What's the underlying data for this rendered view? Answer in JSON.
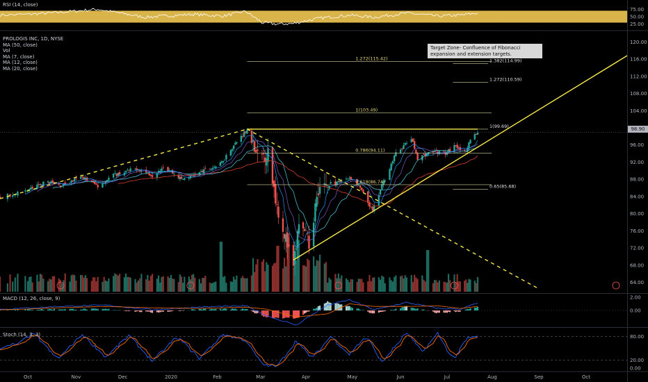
{
  "header": {
    "rsi_label": "RSI (14, close)",
    "main_labels": [
      "PROLOGIS INC, 1D, NYSE",
      "MA (50, close)",
      "Vol",
      "MA (7, close)",
      "MA (12, close)",
      "MA (20, close)"
    ],
    "macd_label": "MACD (12, 26, close, 9)",
    "stoch_label": "Stoch (14, 3, 3)"
  },
  "annotation": "Target Zone- Confluence of Fibonacci expansion and extension targets.",
  "last_price": "98.90",
  "colors": {
    "background": "#000000",
    "bull": "#26a69a",
    "bear": "#ef5350",
    "trendline": "#f7e94a",
    "rsi_band": "#d9b44a",
    "ma50": "#c0392b",
    "ma7": "#2196f3",
    "ma12": "#7e57c2",
    "ma20": "#4dd0e1",
    "macd_line": "#2962ff",
    "signal_line": "#ff6d00",
    "stoch_k": "#2962ff",
    "stoch_d": "#ff6d00"
  },
  "chart_data": [
    {
      "type": "line",
      "title": "RSI (14, close)",
      "y_ticks": [
        "75.00",
        "50.00",
        "25.00"
      ],
      "ylim": [
        15,
        85
      ],
      "band": [
        30,
        70
      ],
      "series": [
        {
          "x": [
            "2019-09-20",
            "2019-10-15",
            "2019-11-15",
            "2019-12-15",
            "2020-01-15",
            "2020-02-05",
            "2020-02-20",
            "2020-03-02",
            "2020-03-12",
            "2020-03-23",
            "2020-04-10",
            "2020-04-29",
            "2020-05-15",
            "2020-06-05",
            "2020-06-25",
            "2020-07-10",
            "2020-07-22"
          ],
          "values": [
            55,
            62,
            75,
            48,
            58,
            52,
            68,
            30,
            25,
            27,
            45,
            55,
            48,
            62,
            52,
            55,
            62
          ]
        }
      ]
    },
    {
      "type": "candlestick",
      "title": "PROLOGIS INC, 1D, NYSE",
      "y_ticks": [
        "120.00",
        "116.00",
        "112.00",
        "108.00",
        "104.00",
        "100.00",
        "96.00",
        "92.00",
        "88.00",
        "84.00",
        "80.00",
        "76.00",
        "72.00",
        "68.00",
        "64.00"
      ],
      "ylim": [
        61.5,
        122
      ],
      "x_ticks": [
        "Oct",
        "Nov",
        "Dec",
        "2020",
        "Feb",
        "Mar",
        "Apr",
        "May",
        "Jun",
        "Jul",
        "Aug",
        "Sep",
        "Oct"
      ],
      "x_range": [
        "2019-09-20",
        "2020-10-20"
      ],
      "close_path": [
        [
          "2019-09-20",
          83.8
        ],
        [
          "2019-10-01",
          85.5
        ],
        [
          "2019-10-14",
          87.5
        ],
        [
          "2019-10-22",
          86.5
        ],
        [
          "2019-11-05",
          88.5
        ],
        [
          "2019-11-15",
          86.5
        ],
        [
          "2019-11-25",
          89
        ],
        [
          "2019-12-10",
          90.5
        ],
        [
          "2019-12-20",
          89
        ],
        [
          "2019-12-27",
          91
        ],
        [
          "2020-01-08",
          88
        ],
        [
          "2020-01-20",
          89.5
        ],
        [
          "2020-02-03",
          91.5
        ],
        [
          "2020-02-10",
          95
        ],
        [
          "2020-02-21",
          99.69
        ],
        [
          "2020-02-28",
          93
        ],
        [
          "2020-03-06",
          94
        ],
        [
          "2020-03-12",
          82
        ],
        [
          "2020-03-18",
          74
        ],
        [
          "2020-03-23",
          67
        ],
        [
          "2020-03-27",
          78
        ],
        [
          "2020-04-03",
          73
        ],
        [
          "2020-04-09",
          86
        ],
        [
          "2020-04-21",
          87
        ],
        [
          "2020-04-29",
          88.5
        ],
        [
          "2020-05-06",
          86
        ],
        [
          "2020-05-14",
          80.5
        ],
        [
          "2020-05-20",
          86.5
        ],
        [
          "2020-05-29",
          94
        ],
        [
          "2020-06-08",
          97.5
        ],
        [
          "2020-06-12",
          93
        ],
        [
          "2020-06-22",
          94.5
        ],
        [
          "2020-06-30",
          94
        ],
        [
          "2020-07-07",
          96
        ],
        [
          "2020-07-14",
          94
        ],
        [
          "2020-07-17",
          97.5
        ],
        [
          "2020-07-22",
          98.9
        ]
      ],
      "volume_spikes": [
        [
          "2020-02-03",
          0.6
        ],
        [
          "2020-03-13",
          0.55
        ],
        [
          "2020-03-20",
          0.7
        ],
        [
          "2020-03-27",
          0.62
        ],
        [
          "2020-06-19",
          0.5
        ]
      ],
      "moving_averages": [
        "MA (50, close)",
        "MA (7, close)",
        "MA (12, close)",
        "MA (20, close)"
      ],
      "trendlines": [
        {
          "style": "dashed",
          "from": [
            "2019-09-20",
            83.5
          ],
          "to": [
            "2020-02-21",
            99.69
          ]
        },
        {
          "style": "dashed",
          "from": [
            "2020-02-21",
            99.69
          ],
          "to": [
            "2020-09-01",
            62.5
          ]
        },
        {
          "style": "solid",
          "from": [
            "2020-02-21",
            99.69
          ],
          "to": [
            "2020-07-22",
            99.69
          ]
        },
        {
          "style": "solid",
          "from": [
            "2020-03-23",
            69.2
          ],
          "to": [
            "2020-10-20",
            116.8
          ]
        }
      ],
      "fib_levels": [
        {
          "label": "1.272(115.42)",
          "value": 115.42,
          "from": "2020-02-21",
          "to": "2020-07-22"
        },
        {
          "label": "1(103.49)",
          "value": 103.49,
          "from": "2020-02-21",
          "to": "2020-07-22"
        },
        {
          "label": "0.786(94.11)",
          "value": 94.11,
          "from": "2020-02-21",
          "to": "2020-07-22"
        },
        {
          "label": "0.618(86.74)",
          "value": 86.74,
          "from": "2020-02-21",
          "to": "2020-07-22"
        },
        {
          "label": "1.414(116.28)",
          "value": 116.28,
          "from": "2020-07-05",
          "to": "2020-07-22"
        },
        {
          "label": "1.382(114.99)",
          "value": 114.99,
          "from": "2020-07-05",
          "to": "2020-07-22"
        },
        {
          "label": "1.272(110.59)",
          "value": 110.59,
          "from": "2020-07-05",
          "to": "2020-07-22"
        },
        {
          "label": "1(99.69)",
          "value": 99.69,
          "from": "2020-07-05",
          "to": "2020-07-22"
        },
        {
          "label": "0.65(85.68)",
          "value": 85.68,
          "from": "2020-07-05",
          "to": "2020-07-22"
        }
      ],
      "last_price": 98.9
    },
    {
      "type": "bar",
      "title": "MACD (12, 26, close, 9)",
      "y_ticks": [
        "2.00",
        "0.00"
      ],
      "ylim": [
        -2.5,
        2.5
      ],
      "macd_path": [
        [
          "2019-09-20",
          0.2
        ],
        [
          "2019-10-20",
          0.6
        ],
        [
          "2019-11-20",
          0.8
        ],
        [
          "2019-12-20",
          0.1
        ],
        [
          "2020-01-20",
          0.5
        ],
        [
          "2020-02-20",
          0.7
        ],
        [
          "2020-03-05",
          -0.8
        ],
        [
          "2020-03-25",
          -2.2
        ],
        [
          "2020-04-15",
          0.8
        ],
        [
          "2020-04-29",
          1.6
        ],
        [
          "2020-05-15",
          0.1
        ],
        [
          "2020-06-05",
          1.2
        ],
        [
          "2020-06-25",
          0.3
        ],
        [
          "2020-07-10",
          0.2
        ],
        [
          "2020-07-22",
          1.1
        ]
      ],
      "signal_path": [
        [
          "2019-09-20",
          0.1
        ],
        [
          "2019-10-20",
          0.4
        ],
        [
          "2019-11-20",
          0.6
        ],
        [
          "2019-12-20",
          0.4
        ],
        [
          "2020-01-20",
          0.3
        ],
        [
          "2020-02-20",
          0.5
        ],
        [
          "2020-03-05",
          0.2
        ],
        [
          "2020-03-25",
          -1.0
        ],
        [
          "2020-04-15",
          -0.5
        ],
        [
          "2020-04-29",
          1.0
        ],
        [
          "2020-05-15",
          0.6
        ],
        [
          "2020-06-05",
          0.6
        ],
        [
          "2020-06-25",
          0.7
        ],
        [
          "2020-07-10",
          0.3
        ],
        [
          "2020-07-22",
          0.6
        ]
      ]
    },
    {
      "type": "line",
      "title": "Stoch (14, 3, 3)",
      "y_ticks": [
        "80.00",
        "20.00",
        "0.00"
      ],
      "ylim": [
        -5,
        100
      ],
      "guide_levels": [
        80,
        20
      ],
      "k_path": [
        [
          "2019-09-20",
          45
        ],
        [
          "2019-10-05",
          88
        ],
        [
          "2019-10-20",
          22
        ],
        [
          "2019-11-05",
          85
        ],
        [
          "2019-11-20",
          28
        ],
        [
          "2019-12-05",
          82
        ],
        [
          "2019-12-20",
          18
        ],
        [
          "2020-01-05",
          80
        ],
        [
          "2020-01-20",
          25
        ],
        [
          "2020-02-05",
          85
        ],
        [
          "2020-02-20",
          70
        ],
        [
          "2020-03-02",
          10
        ],
        [
          "2020-03-12",
          4
        ],
        [
          "2020-03-25",
          70
        ],
        [
          "2020-04-05",
          25
        ],
        [
          "2020-04-17",
          80
        ],
        [
          "2020-04-29",
          35
        ],
        [
          "2020-05-10",
          82
        ],
        [
          "2020-05-20",
          15
        ],
        [
          "2020-06-05",
          90
        ],
        [
          "2020-06-15",
          40
        ],
        [
          "2020-06-25",
          88
        ],
        [
          "2020-07-05",
          20
        ],
        [
          "2020-07-15",
          75
        ],
        [
          "2020-07-22",
          80
        ]
      ]
    }
  ]
}
